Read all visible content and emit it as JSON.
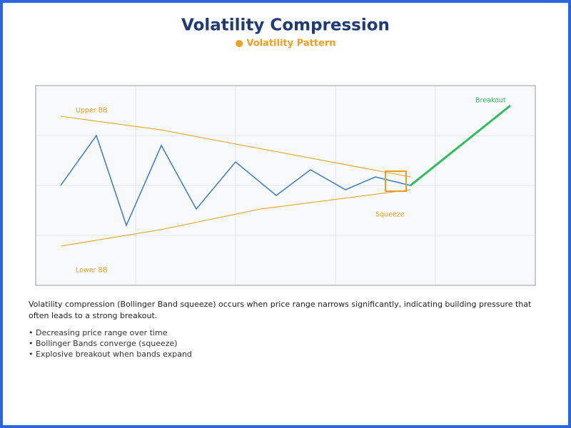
{
  "header": {
    "title": "Volatility Compression",
    "subtitle": "● Volatility Pattern"
  },
  "diagram": {
    "labels": {
      "upper": "Upper BB",
      "lower": "Lower BB",
      "squeeze": "Squeeze",
      "breakout": "Breakout"
    }
  },
  "description": {
    "text": [
      "Volatility compression (Bollinger Band squeeze) occurs when price range narrows significantly, indicating building pressure that",
      "often leads to a strong breakout."
    ],
    "bullets": [
      "• Decreasing price range over time",
      "• Bollinger Bands converge (squeeze)",
      "• Explosive breakout when bands expand"
    ]
  }
}
